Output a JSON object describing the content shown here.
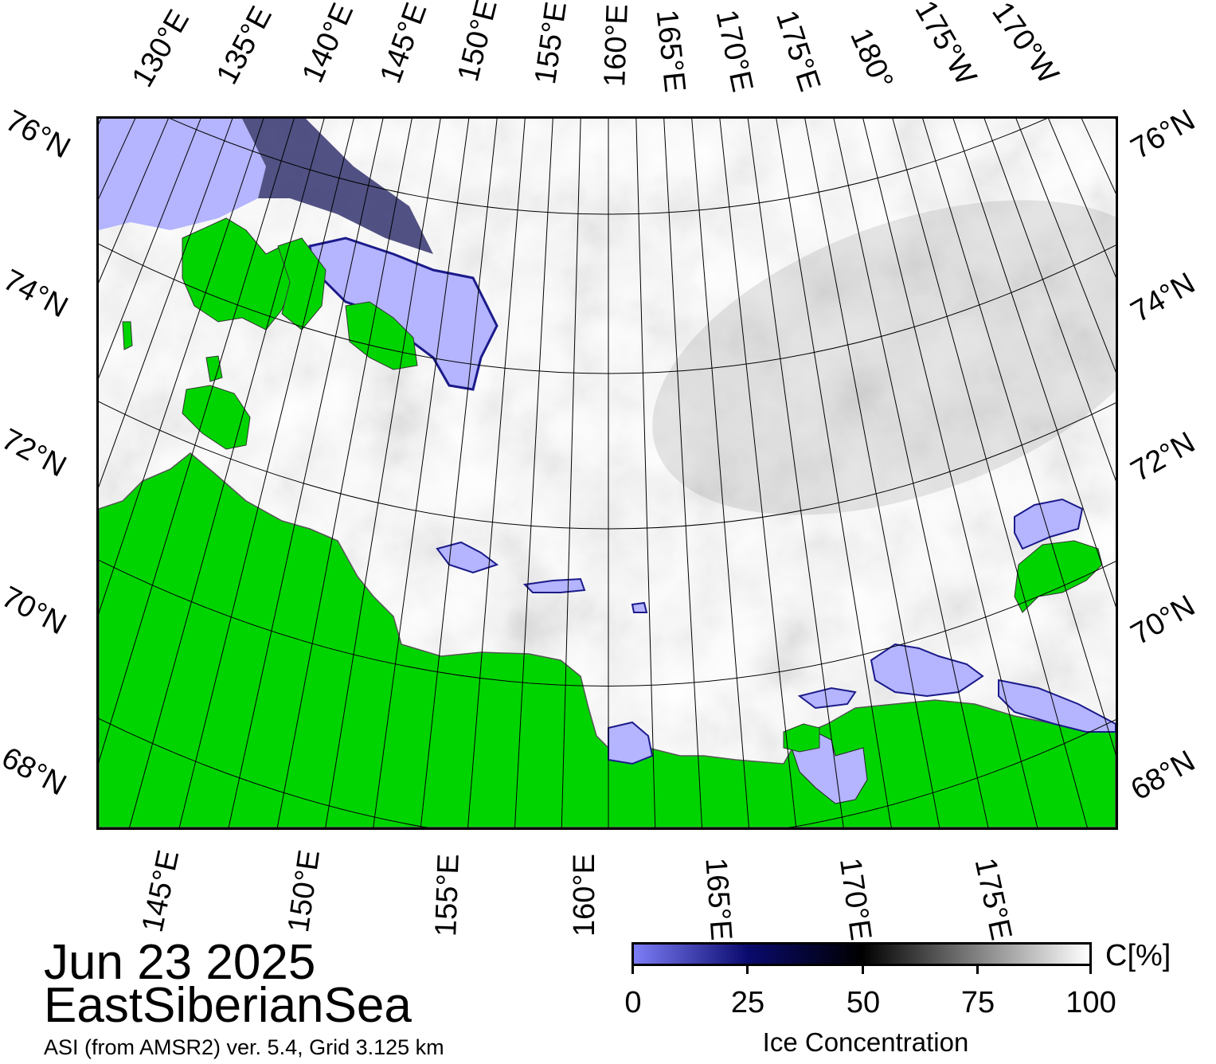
{
  "title": {
    "date": "Jun 23 2025",
    "region": "EastSiberianSea",
    "product": "ASI (from AMSR2) ver. 5.4,  Grid 3.125 km"
  },
  "top_longitude_labels": [
    "130°E",
    "135°E",
    "140°E",
    "145°E",
    "150°E",
    "155°E",
    "160°E",
    "165°E",
    "170°E",
    "175°E",
    "180°",
    "175°W",
    "170°W"
  ],
  "bottom_longitude_labels": [
    "145°E",
    "150°E",
    "155°E",
    "160°E",
    "165°E",
    "170°E",
    "175°E"
  ],
  "left_latitude_labels": [
    "76°N",
    "74°N",
    "72°N",
    "70°N",
    "68°N"
  ],
  "right_latitude_labels": [
    "76°N",
    "74°N",
    "72°N",
    "70°N",
    "68°N"
  ],
  "colorbar": {
    "title": "Ice Concentration",
    "unit": "C[%]",
    "ticks": [
      "0",
      "25",
      "50",
      "75",
      "100"
    ],
    "stops": [
      "#7d7df7",
      "#0a0a6e",
      "#000000",
      "#ffffff"
    ]
  },
  "colors": {
    "land": "#00d400",
    "open_water": "#b4b4ff",
    "ice_full": "#ffffff",
    "frame": "#000000"
  }
}
